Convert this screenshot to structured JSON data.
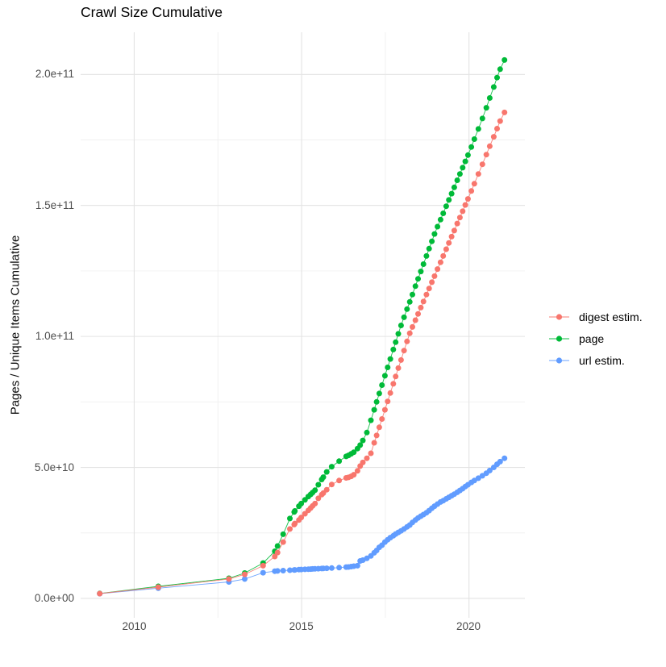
{
  "chart_data": {
    "type": "scatter-line",
    "title": "Crawl Size Cumulative",
    "xlabel": "",
    "ylabel": "Pages / Unique Items Cumulative",
    "legend_position": "right",
    "grid": "major+minor",
    "background": "#FFFFFF",
    "colors": {
      "grid_major": "#e3e3e3",
      "grid_minor": "#f0f0f0",
      "tick_text": "#4d4d4d"
    },
    "xlim": [
      2008.4,
      2021.67
    ],
    "ylim_e9": [
      -7.4,
      216.1
    ],
    "x_tick_labels": [
      "2010",
      "2015",
      "2020"
    ],
    "x_tick_years": [
      2010,
      2015,
      2020
    ],
    "x_minor_years": [
      2012.5,
      2017.5
    ],
    "y_tick_labels": [
      "0.0e+00",
      "5.0e+10",
      "1.0e+11",
      "1.5e+11",
      "2.0e+11"
    ],
    "y_tick_values_e9": [
      0,
      50,
      100,
      150,
      200
    ],
    "y_minor_values_e9": [
      25,
      75,
      125,
      175
    ],
    "values_unit": "pages x 1e9",
    "x": [
      2008.97,
      2010.72,
      2012.83,
      2013.3,
      2013.85,
      2014.2,
      2014.28,
      2014.45,
      2014.65,
      2014.78,
      2014.8,
      2014.92,
      2014.99,
      2015.1,
      2015.2,
      2015.27,
      2015.33,
      2015.4,
      2015.5,
      2015.6,
      2015.65,
      2015.75,
      2015.9,
      2016.12,
      2016.33,
      2016.4,
      2016.48,
      2016.56,
      2016.67,
      2016.75,
      2016.83,
      2016.95,
      2017.07,
      2017.17,
      2017.24,
      2017.32,
      2017.4,
      2017.49,
      2017.57,
      2017.65,
      2017.74,
      2017.81,
      2017.89,
      2017.97,
      2018.06,
      2018.15,
      2018.23,
      2018.31,
      2018.4,
      2018.48,
      2018.56,
      2018.64,
      2018.73,
      2018.81,
      2018.89,
      2018.97,
      2019.06,
      2019.15,
      2019.23,
      2019.32,
      2019.4,
      2019.48,
      2019.56,
      2019.65,
      2019.73,
      2019.81,
      2019.89,
      2019.97,
      2020.07,
      2020.16,
      2020.28,
      2020.4,
      2020.52,
      2020.62,
      2020.74,
      2020.84,
      2020.93,
      2021.06
    ],
    "series": [
      {
        "name": "digest estim.",
        "color": "#F8766D",
        "values_e9": [
          1.85,
          4.3,
          7.4,
          9.2,
          12.5,
          16.0,
          17.5,
          21.5,
          26.5,
          28.2,
          28.6,
          29.9,
          30.9,
          32.3,
          33.6,
          34.5,
          35.3,
          36.2,
          38.2,
          39.6,
          40.2,
          41.5,
          43.5,
          45.0,
          46.0,
          46.2,
          46.6,
          47.2,
          48.7,
          50.5,
          51.9,
          53.5,
          55.4,
          59.4,
          62.2,
          65.3,
          68.5,
          72.0,
          75.2,
          78.4,
          81.9,
          84.7,
          87.9,
          91.0,
          94.6,
          98.1,
          101.2,
          103.6,
          106.2,
          108.6,
          111.0,
          113.3,
          116.0,
          118.3,
          120.7,
          123.0,
          125.7,
          128.3,
          130.7,
          133.3,
          135.7,
          138.1,
          140.4,
          143.1,
          145.4,
          147.8,
          150.2,
          152.5,
          155.5,
          158.3,
          162.0,
          165.7,
          169.4,
          172.6,
          176.2,
          179.3,
          182.2,
          185.5
        ]
      },
      {
        "name": "page",
        "color": "#00BA38",
        "values_e9": [
          1.9,
          4.6,
          7.7,
          9.7,
          13.5,
          18.0,
          20.0,
          24.5,
          30.5,
          33.0,
          33.4,
          35.2,
          36.2,
          37.6,
          38.9,
          39.7,
          40.4,
          41.3,
          43.4,
          45.4,
          46.3,
          48.3,
          50.3,
          52.4,
          54.2,
          54.6,
          55.2,
          55.8,
          57.2,
          58.5,
          60.3,
          63.3,
          68.0,
          72.0,
          75.0,
          78.2,
          81.4,
          85.0,
          88.2,
          91.4,
          95.0,
          97.8,
          101.0,
          104.2,
          107.3,
          110.4,
          113.2,
          116.0,
          119.2,
          122.0,
          124.8,
          127.6,
          130.7,
          133.5,
          136.3,
          139.1,
          141.9,
          144.6,
          147.0,
          149.7,
          152.1,
          154.5,
          156.9,
          159.6,
          162.0,
          164.4,
          166.8,
          169.2,
          172.3,
          175.3,
          179.2,
          183.2,
          187.3,
          191.0,
          195.2,
          198.8,
          202.0,
          205.5
        ]
      },
      {
        "name": "url estim.",
        "color": "#619CFF",
        "values_e9": [
          1.8,
          3.9,
          6.3,
          7.4,
          9.8,
          10.4,
          10.5,
          10.6,
          10.75,
          10.85,
          10.9,
          11.0,
          11.05,
          11.1,
          11.15,
          11.2,
          11.25,
          11.3,
          11.35,
          11.4,
          11.45,
          11.5,
          11.6,
          11.75,
          11.95,
          12.0,
          12.15,
          12.3,
          12.5,
          14.3,
          14.6,
          15.3,
          16.2,
          17.4,
          18.3,
          19.5,
          20.3,
          21.5,
          22.4,
          23.2,
          23.9,
          24.6,
          25.2,
          25.8,
          26.5,
          27.3,
          28.0,
          29.0,
          29.9,
          30.7,
          31.4,
          32.0,
          32.7,
          33.5,
          34.4,
          35.2,
          36.0,
          36.8,
          37.3,
          38.0,
          38.6,
          39.2,
          39.8,
          40.5,
          41.2,
          41.9,
          42.7,
          43.4,
          44.3,
          45.0,
          45.9,
          46.8,
          47.8,
          48.8,
          50.0,
          51.2,
          52.2,
          53.5
        ]
      }
    ],
    "draw_order": [
      1,
      2,
      0
    ]
  }
}
